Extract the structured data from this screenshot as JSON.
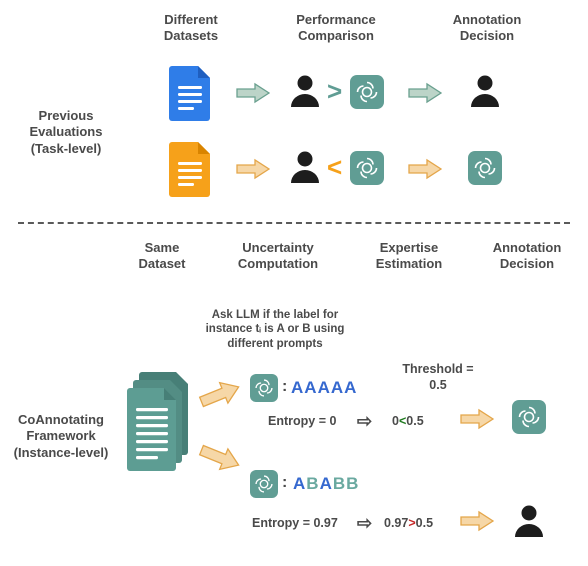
{
  "colors": {
    "text": "#4a4a4a",
    "blue_doc": "#2f7de8",
    "blue_doc_dark": "#1f5fc0",
    "orange_doc": "#f6a11a",
    "orange_doc_dark": "#d98400",
    "teal": "#609d94",
    "teal_doc": "#5d9d93",
    "black": "#1d1d1d",
    "arrow_teal": "#bcd4c8",
    "arrow_teal_stroke": "#6aa08f",
    "arrow_orange": "#f6d7a7",
    "arrow_orange_stroke": "#e4a64a",
    "dash": "#5a5a5a",
    "letters_A": "#3568cf",
    "letters_B": "#6aa9a0",
    "cmp_green": "#1f7a1f",
    "cmp_red": "#c62828"
  },
  "top": {
    "headers": {
      "datasets": "Different\nDatasets",
      "comparison": "Performance\nComparison",
      "decision": "Annotation\nDecision"
    },
    "side_label": "Previous\nEvaluations\n(Task-level)",
    "cmp_gt": ">",
    "cmp_lt": "<"
  },
  "bottom": {
    "headers": {
      "dataset": "Same\nDataset",
      "uncertainty": "Uncertainty\nComputation",
      "expertise": "Expertise\nEstimation",
      "decision": "Annotation\nDecision"
    },
    "side_label": "CoAnnotating\nFramework\n(Instance-level)",
    "prompt_label": "Ask LLM if the label for\ninstance tᵢ is A or B using\ndifferent prompts",
    "row1": {
      "letters": "AAAAA",
      "letter_colors": [
        "A",
        "A",
        "A",
        "A",
        "A"
      ],
      "entropy_label": "Entropy = ",
      "entropy_value": "0",
      "threshold_label": "Threshold =",
      "threshold_value": "0.5",
      "expr_left": "0",
      "expr_cmp": "<",
      "expr_right": "0.5"
    },
    "row2": {
      "letters": "ABABB",
      "letter_colors": [
        "A",
        "B",
        "A",
        "B",
        "B"
      ],
      "entropy_label": "Entropy = ",
      "entropy_value": "0.97",
      "expr_left": "0.97",
      "expr_cmp": ">",
      "expr_right": "0.5"
    }
  }
}
